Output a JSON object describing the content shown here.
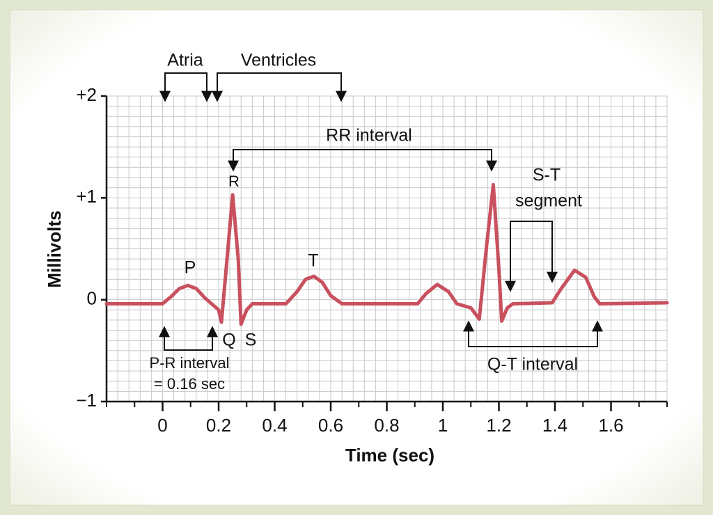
{
  "chart_data": {
    "type": "line",
    "x_label": "Time (sec)",
    "y_label": "Millivolts",
    "xlim": [
      -0.2,
      1.8
    ],
    "xticks": [
      0,
      0.2,
      0.4,
      0.6,
      0.8,
      1.0,
      1.2,
      1.4,
      1.6
    ],
    "ylim": [
      -1,
      2
    ],
    "yticks": [
      {
        "value": -1,
        "label": "−1"
      },
      {
        "value": 0,
        "label": "0"
      },
      {
        "value": 1,
        "label": "+1"
      },
      {
        "value": 2,
        "label": "+2"
      }
    ],
    "grid": true,
    "series": [
      {
        "color": "#c9505e",
        "x": [
          -0.2,
          0,
          0.03,
          0.06,
          0.09,
          0.12,
          0.15,
          0.175,
          0.2,
          0.21,
          0.23,
          0.25,
          0.27,
          0.28,
          0.3,
          0.32,
          0.44,
          0.48,
          0.51,
          0.54,
          0.57,
          0.6,
          0.64,
          0.91,
          0.94,
          0.98,
          1.02,
          1.05,
          1.1,
          1.13,
          1.155,
          1.18,
          1.2,
          1.21,
          1.23,
          1.25,
          1.39,
          1.42,
          1.47,
          1.51,
          1.54,
          1.56,
          1.8
        ],
        "values": [
          -0.04,
          -0.04,
          0.03,
          0.11,
          0.14,
          0.11,
          0.02,
          -0.04,
          -0.1,
          -0.22,
          0.4,
          1.03,
          0.4,
          -0.24,
          -0.1,
          -0.04,
          -0.04,
          0.08,
          0.2,
          0.23,
          0.17,
          0.04,
          -0.04,
          -0.04,
          0.06,
          0.15,
          0.08,
          -0.04,
          -0.08,
          -0.19,
          0.5,
          1.13,
          0.3,
          -0.21,
          -0.08,
          -0.04,
          -0.03,
          0.1,
          0.29,
          0.22,
          0.03,
          -0.04,
          -0.03
        ]
      }
    ],
    "annotations": [
      "Atria",
      "Ventricles",
      "RR interval",
      "R",
      "P",
      "T",
      "Q",
      "S",
      "S-T",
      "segment",
      "P-R interval",
      "= 0.16 sec",
      "Q-T interval"
    ]
  }
}
